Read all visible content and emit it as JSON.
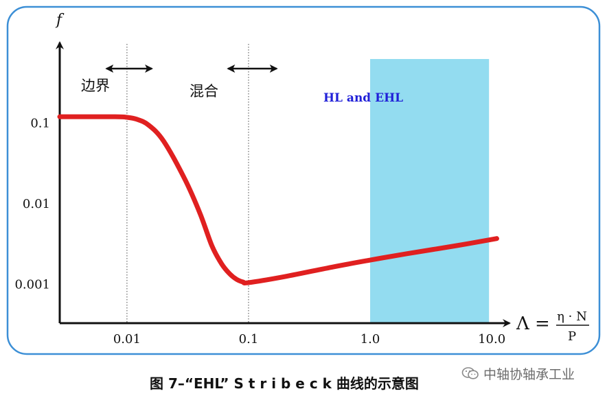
{
  "chart_data": {
    "type": "line",
    "x_scale": "log",
    "y_scale": "log",
    "xlim": [
      0.0028,
      14
    ],
    "ylim": [
      0.00033,
      1
    ],
    "y_axis_label": "f",
    "x_axis_label": "Λ =",
    "x_axis_fraction": {
      "numerator": "η · N",
      "denominator": "P"
    },
    "x_ticks": [
      {
        "value": 0.01,
        "label": "0.01"
      },
      {
        "value": 0.1,
        "label": "0.1"
      },
      {
        "value": 1.0,
        "label": "1.0"
      },
      {
        "value": 10.0,
        "label": "10.0"
      }
    ],
    "y_ticks": [
      {
        "value": 0.1,
        "label": "0.1"
      },
      {
        "value": 0.01,
        "label": "0.01"
      },
      {
        "value": 0.001,
        "label": "0.001"
      }
    ],
    "series": [
      {
        "color": "#e02020",
        "x": [
          0.0028,
          0.008,
          0.01,
          0.012,
          0.015,
          0.02,
          0.03,
          0.04,
          0.05,
          0.06,
          0.07,
          0.08,
          0.09,
          0.1,
          0.2,
          0.5,
          1.0,
          2.0,
          5.0,
          11.0
        ],
        "y": [
          0.12,
          0.12,
          0.118,
          0.112,
          0.095,
          0.06,
          0.02,
          0.0075,
          0.003,
          0.0018,
          0.00135,
          0.00115,
          0.00107,
          0.00105,
          0.00125,
          0.00165,
          0.002,
          0.0024,
          0.003,
          0.0037
        ]
      }
    ],
    "vertical_lines": [
      0.01,
      0.1
    ],
    "regions": [
      {
        "label": "边界",
        "arrow_x": [
          0.0068,
          0.016
        ]
      },
      {
        "label": "混合",
        "arrow_x": [
          0.068,
          0.17
        ]
      },
      {
        "label": "HL and EHL",
        "shade_x": [
          1.0,
          9.5
        ],
        "shade_color": "#93dcf0",
        "label_color": "#2020d8"
      }
    ],
    "frame_color": "#3c8fd6"
  },
  "caption": "图 7–“EHL” S t r i b e c k 曲线的示意图",
  "watermark": "中轴协轴承工业"
}
